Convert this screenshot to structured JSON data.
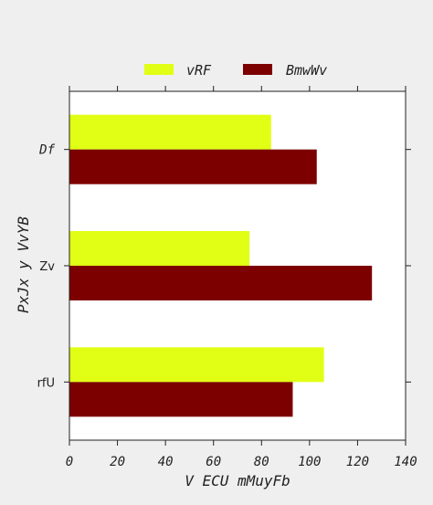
{
  "chart_data": {
    "type": "bar",
    "orientation": "horizontal",
    "title": "",
    "xlabel": "V ECU mMuyFb",
    "ylabel": "PxJx y VvYB",
    "categories": [
      "Df",
      "Zv",
      "rfU"
    ],
    "category_italic": [
      true,
      false,
      false
    ],
    "xlim": [
      0,
      140
    ],
    "xticks": [
      "0",
      "20",
      "40",
      "60",
      "80",
      "100",
      "120",
      "140"
    ],
    "series": [
      {
        "name": "vRF",
        "color": "#e1ff14",
        "values": [
          84,
          75,
          106
        ]
      },
      {
        "name": "BmwWv",
        "color": "#7d0000",
        "values": [
          103,
          126,
          93
        ]
      }
    ],
    "legend": "top-center",
    "grid": false
  }
}
